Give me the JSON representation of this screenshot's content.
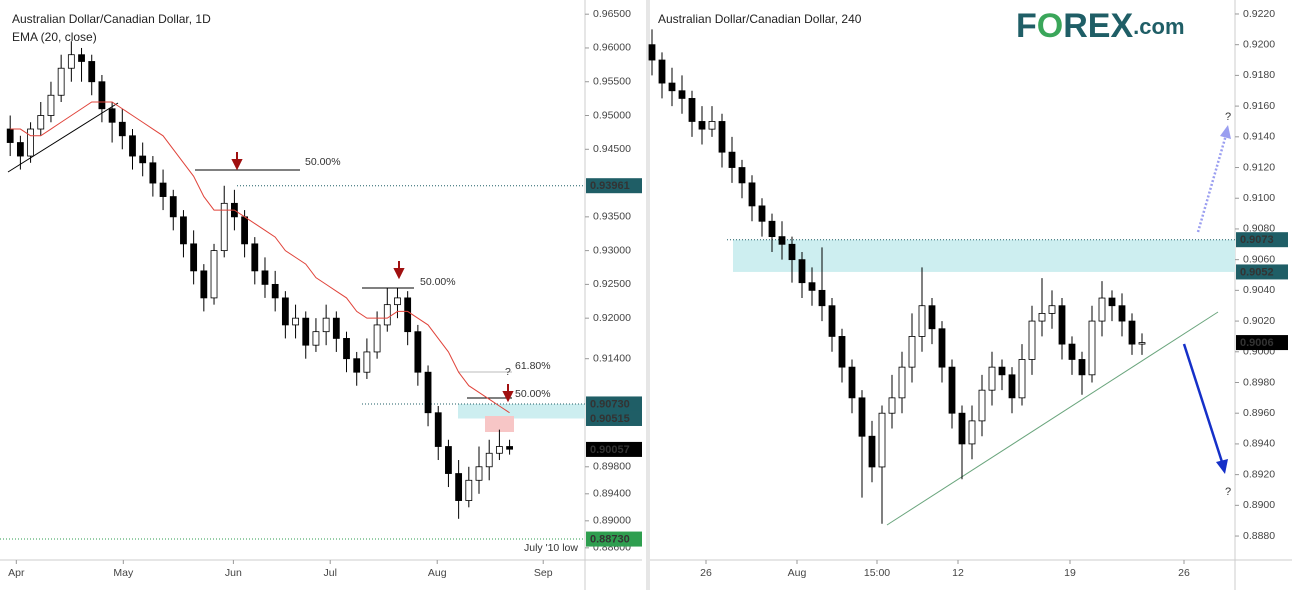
{
  "chart_data": [
    {
      "type": "candlestick",
      "title": "Australian Dollar/Canadian Dollar, 1D",
      "ema": {
        "name": "EMA (20, close)",
        "color": "#e0433a",
        "values": [
          0.948,
          0.948,
          0.947,
          0.947,
          0.948,
          0.949,
          0.95,
          0.951,
          0.952,
          0.952,
          0.952,
          0.951,
          0.95,
          0.949,
          0.948,
          0.947,
          0.945,
          0.943,
          0.941,
          0.938,
          0.936,
          0.936,
          0.936,
          0.935,
          0.934,
          0.933,
          0.932,
          0.93,
          0.929,
          0.928,
          0.926,
          0.925,
          0.924,
          0.923,
          0.921,
          0.92,
          0.92,
          0.92,
          0.921,
          0.921,
          0.92,
          0.919,
          0.917,
          0.915,
          0.912,
          0.91,
          0.909,
          0.908,
          0.907,
          0.906
        ]
      },
      "candles": [
        [
          0.948,
          0.95,
          0.944,
          0.946
        ],
        [
          0.946,
          0.947,
          0.942,
          0.944
        ],
        [
          0.944,
          0.949,
          0.943,
          0.948
        ],
        [
          0.948,
          0.952,
          0.947,
          0.95
        ],
        [
          0.95,
          0.955,
          0.949,
          0.953
        ],
        [
          0.953,
          0.959,
          0.952,
          0.957
        ],
        [
          0.957,
          0.961,
          0.955,
          0.959
        ],
        [
          0.959,
          0.96,
          0.955,
          0.958
        ],
        [
          0.958,
          0.959,
          0.953,
          0.955
        ],
        [
          0.955,
          0.956,
          0.949,
          0.951
        ],
        [
          0.951,
          0.952,
          0.946,
          0.949
        ],
        [
          0.949,
          0.951,
          0.945,
          0.947
        ],
        [
          0.947,
          0.948,
          0.942,
          0.944
        ],
        [
          0.944,
          0.946,
          0.941,
          0.943
        ],
        [
          0.943,
          0.944,
          0.938,
          0.94
        ],
        [
          0.94,
          0.942,
          0.936,
          0.938
        ],
        [
          0.938,
          0.939,
          0.933,
          0.935
        ],
        [
          0.935,
          0.936,
          0.929,
          0.931
        ],
        [
          0.931,
          0.933,
          0.925,
          0.927
        ],
        [
          0.927,
          0.928,
          0.921,
          0.923
        ],
        [
          0.923,
          0.931,
          0.922,
          0.93
        ],
        [
          0.93,
          0.9396,
          0.929,
          0.937
        ],
        [
          0.937,
          0.939,
          0.933,
          0.935
        ],
        [
          0.935,
          0.936,
          0.929,
          0.931
        ],
        [
          0.931,
          0.932,
          0.925,
          0.927
        ],
        [
          0.927,
          0.929,
          0.923,
          0.925
        ],
        [
          0.925,
          0.927,
          0.921,
          0.923
        ],
        [
          0.923,
          0.924,
          0.917,
          0.919
        ],
        [
          0.919,
          0.922,
          0.917,
          0.92
        ],
        [
          0.92,
          0.921,
          0.914,
          0.916
        ],
        [
          0.916,
          0.92,
          0.915,
          0.918
        ],
        [
          0.918,
          0.922,
          0.916,
          0.92
        ],
        [
          0.92,
          0.921,
          0.915,
          0.917
        ],
        [
          0.917,
          0.918,
          0.912,
          0.914
        ],
        [
          0.914,
          0.915,
          0.91,
          0.912
        ],
        [
          0.912,
          0.917,
          0.911,
          0.915
        ],
        [
          0.915,
          0.921,
          0.914,
          0.919
        ],
        [
          0.919,
          0.9245,
          0.918,
          0.922
        ],
        [
          0.922,
          0.9245,
          0.92,
          0.923
        ],
        [
          0.923,
          0.924,
          0.916,
          0.918
        ],
        [
          0.918,
          0.919,
          0.91,
          0.912
        ],
        [
          0.912,
          0.913,
          0.904,
          0.906
        ],
        [
          0.906,
          0.907,
          0.899,
          0.901
        ],
        [
          0.901,
          0.902,
          0.895,
          0.897
        ],
        [
          0.897,
          0.899,
          0.8903,
          0.893
        ],
        [
          0.893,
          0.898,
          0.892,
          0.896
        ],
        [
          0.896,
          0.901,
          0.894,
          0.898
        ],
        [
          0.898,
          0.902,
          0.896,
          0.9
        ],
        [
          0.9,
          0.9035,
          0.899,
          0.901
        ],
        [
          0.901,
          0.902,
          0.8998,
          0.9006
        ]
      ],
      "xlim": [
        -1,
        56.4
      ],
      "xticks": [
        {
          "value": 0.6,
          "label": "Apr"
        },
        {
          "value": 11.1,
          "label": "May"
        },
        {
          "value": 21.9,
          "label": "Jun"
        },
        {
          "value": 31.4,
          "label": "Jul"
        },
        {
          "value": 41.9,
          "label": "Aug"
        },
        {
          "value": 52.3,
          "label": "Sep"
        }
      ],
      "ylim": [
        0.8842,
        0.9671
      ],
      "yticks": [
        {
          "value": 0.965,
          "label": "0.96500"
        },
        {
          "value": 0.96,
          "label": "0.96000"
        },
        {
          "value": 0.955,
          "label": "0.95500"
        },
        {
          "value": 0.95,
          "label": "0.95000"
        },
        {
          "value": 0.945,
          "label": "0.94500"
        },
        {
          "value": 0.935,
          "label": "0.93500"
        },
        {
          "value": 0.93,
          "label": "0.93000"
        },
        {
          "value": 0.925,
          "label": "0.92500"
        },
        {
          "value": 0.92,
          "label": "0.92000"
        },
        {
          "value": 0.914,
          "label": "0.91400"
        },
        {
          "value": 0.898,
          "label": "0.89800"
        },
        {
          "value": 0.894,
          "label": "0.89400"
        },
        {
          "value": 0.89,
          "label": "0.89000"
        },
        {
          "value": 0.886,
          "label": "0.88600"
        }
      ],
      "price_labels": [
        {
          "value": 0.93961,
          "label": "0.93961",
          "color": "#1f5e66"
        },
        {
          "value": 0.9073,
          "label": "0.90730",
          "color": "#1f5e66"
        },
        {
          "value": 0.90515,
          "label": "0.90515",
          "color": "#1f5e66"
        },
        {
          "value": 0.90057,
          "label": "0.90057",
          "color": "#000000"
        },
        {
          "value": 0.8873,
          "label": "0.88730",
          "color": "#2e9e4f"
        }
      ],
      "annotations": [
        "50.00%",
        "50.00%",
        "61.80%",
        "?",
        "50.00%",
        "July '10 low"
      ]
    },
    {
      "type": "candlestick",
      "title": "Australian Dollar/Canadian Dollar, 240",
      "logo": [
        "F",
        "O",
        "REX",
        ".com"
      ],
      "candles": [
        [
          0.92,
          0.921,
          0.918,
          0.919
        ],
        [
          0.919,
          0.9195,
          0.9165,
          0.9175
        ],
        [
          0.9175,
          0.9185,
          0.916,
          0.917
        ],
        [
          0.917,
          0.918,
          0.9155,
          0.9165
        ],
        [
          0.9165,
          0.917,
          0.914,
          0.915
        ],
        [
          0.915,
          0.916,
          0.9135,
          0.9145
        ],
        [
          0.9145,
          0.916,
          0.914,
          0.915
        ],
        [
          0.915,
          0.9155,
          0.912,
          0.913
        ],
        [
          0.913,
          0.914,
          0.911,
          0.912
        ],
        [
          0.912,
          0.9125,
          0.91,
          0.911
        ],
        [
          0.911,
          0.9115,
          0.9085,
          0.9095
        ],
        [
          0.9095,
          0.91,
          0.9075,
          0.9085
        ],
        [
          0.9085,
          0.909,
          0.9065,
          0.9075
        ],
        [
          0.9075,
          0.9085,
          0.906,
          0.907
        ],
        [
          0.907,
          0.9075,
          0.9045,
          0.906
        ],
        [
          0.906,
          0.9065,
          0.9035,
          0.9045
        ],
        [
          0.9045,
          0.9055,
          0.903,
          0.904
        ],
        [
          0.904,
          0.9068,
          0.902,
          0.903
        ],
        [
          0.903,
          0.9035,
          0.9,
          0.901
        ],
        [
          0.901,
          0.9015,
          0.898,
          0.899
        ],
        [
          0.899,
          0.8995,
          0.896,
          0.897
        ],
        [
          0.897,
          0.8975,
          0.8905,
          0.8945
        ],
        [
          0.8945,
          0.8955,
          0.8915,
          0.8925
        ],
        [
          0.8925,
          0.8965,
          0.8888,
          0.896
        ],
        [
          0.896,
          0.8985,
          0.895,
          0.897
        ],
        [
          0.897,
          0.9,
          0.896,
          0.899
        ],
        [
          0.899,
          0.9025,
          0.898,
          0.901
        ],
        [
          0.901,
          0.9055,
          0.9,
          0.903
        ],
        [
          0.903,
          0.9035,
          0.9005,
          0.9015
        ],
        [
          0.9015,
          0.902,
          0.898,
          0.899
        ],
        [
          0.899,
          0.8995,
          0.895,
          0.896
        ],
        [
          0.896,
          0.8965,
          0.8917,
          0.894
        ],
        [
          0.894,
          0.8965,
          0.893,
          0.8955
        ],
        [
          0.8955,
          0.8985,
          0.8945,
          0.8975
        ],
        [
          0.8975,
          0.9,
          0.8965,
          0.899
        ],
        [
          0.899,
          0.8995,
          0.8975,
          0.8985
        ],
        [
          0.8985,
          0.899,
          0.896,
          0.897
        ],
        [
          0.897,
          0.9005,
          0.8965,
          0.8995
        ],
        [
          0.8995,
          0.903,
          0.8985,
          0.902
        ],
        [
          0.902,
          0.9048,
          0.901,
          0.9025
        ],
        [
          0.9025,
          0.904,
          0.9015,
          0.903
        ],
        [
          0.903,
          0.9035,
          0.8995,
          0.9005
        ],
        [
          0.9005,
          0.901,
          0.8985,
          0.8995
        ],
        [
          0.8995,
          0.9,
          0.8972,
          0.8985
        ],
        [
          0.8985,
          0.903,
          0.898,
          0.902
        ],
        [
          0.902,
          0.9046,
          0.901,
          0.9035
        ],
        [
          0.9035,
          0.904,
          0.902,
          0.903
        ],
        [
          0.903,
          0.9038,
          0.901,
          0.902
        ],
        [
          0.902,
          0.9025,
          0.8998,
          0.9005
        ],
        [
          0.9005,
          0.9012,
          0.8998,
          0.9006
        ]
      ],
      "xlim": [
        -0.2,
        58.3
      ],
      "xticks": [
        {
          "value": 5.4,
          "label": "26"
        },
        {
          "value": 14.5,
          "label": "Aug"
        },
        {
          "value": 22.5,
          "label": "15:00"
        },
        {
          "value": 30.6,
          "label": "12"
        },
        {
          "value": 41.8,
          "label": "19"
        },
        {
          "value": 53.2,
          "label": "26"
        }
      ],
      "ylim": [
        0.88644,
        0.92291
      ],
      "yticks": [
        {
          "value": 0.922,
          "label": "0.9220"
        },
        {
          "value": 0.92,
          "label": "0.9200"
        },
        {
          "value": 0.918,
          "label": "0.9180"
        },
        {
          "value": 0.916,
          "label": "0.9160"
        },
        {
          "value": 0.914,
          "label": "0.9140"
        },
        {
          "value": 0.912,
          "label": "0.9120"
        },
        {
          "value": 0.91,
          "label": "0.9100"
        },
        {
          "value": 0.908,
          "label": "0.9080"
        },
        {
          "value": 0.906,
          "label": "0.9060"
        },
        {
          "value": 0.904,
          "label": "0.9040"
        },
        {
          "value": 0.902,
          "label": "0.9020"
        },
        {
          "value": 0.9,
          "label": "0.9000"
        },
        {
          "value": 0.898,
          "label": "0.8980"
        },
        {
          "value": 0.896,
          "label": "0.8960"
        },
        {
          "value": 0.894,
          "label": "0.8940"
        },
        {
          "value": 0.892,
          "label": "0.8920"
        },
        {
          "value": 0.89,
          "label": "0.8900"
        },
        {
          "value": 0.888,
          "label": "0.8880"
        }
      ],
      "price_labels": [
        {
          "value": 0.9073,
          "label": "0.9073",
          "color": "#1f5e66"
        },
        {
          "value": 0.9052,
          "label": "0.9052",
          "color": "#1f5e66"
        },
        {
          "value": 0.9006,
          "label": "0.9006",
          "color": "#000000"
        }
      ],
      "annotations": [
        "?",
        "?"
      ]
    }
  ]
}
